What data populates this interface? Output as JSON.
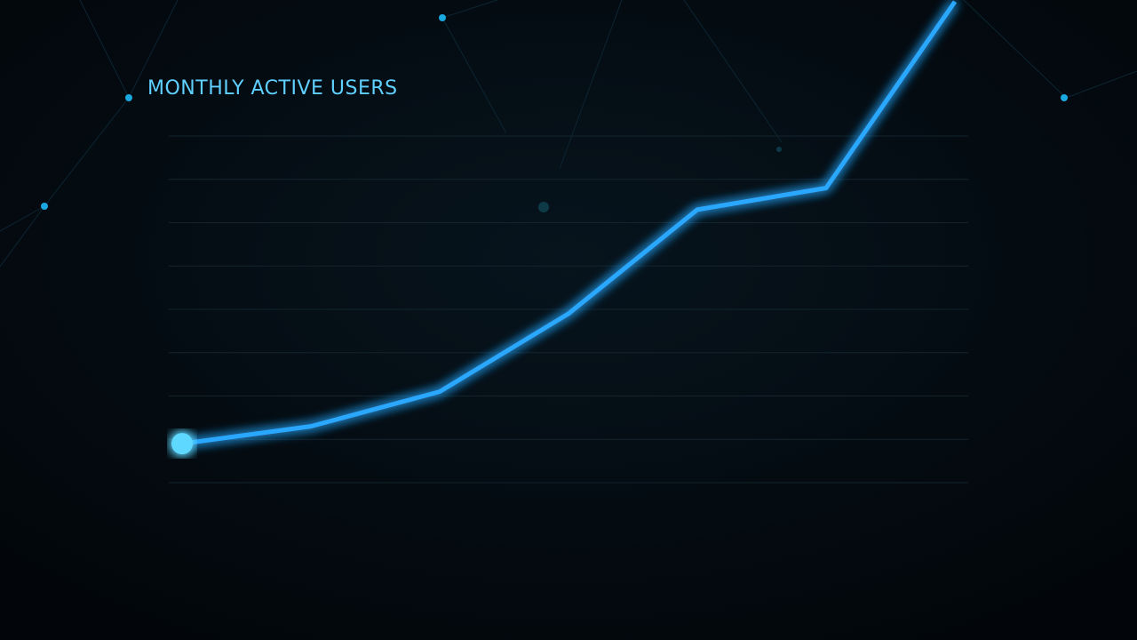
{
  "chart_data": {
    "type": "line",
    "title": "MONTHLY ACTIVE USERS",
    "categories": [
      null,
      null,
      null,
      null,
      null,
      null,
      null
    ],
    "series": [
      {
        "color": "#2aa8ff",
        "values": [
          0.9,
          1.3,
          2.1,
          3.9,
          6.3,
          6.8,
          11.1
        ]
      }
    ],
    "ylim": [
      0,
      8
    ],
    "yticks": [
      0,
      1,
      2,
      3,
      4,
      5,
      6,
      7,
      8
    ],
    "grid": true
  }
}
